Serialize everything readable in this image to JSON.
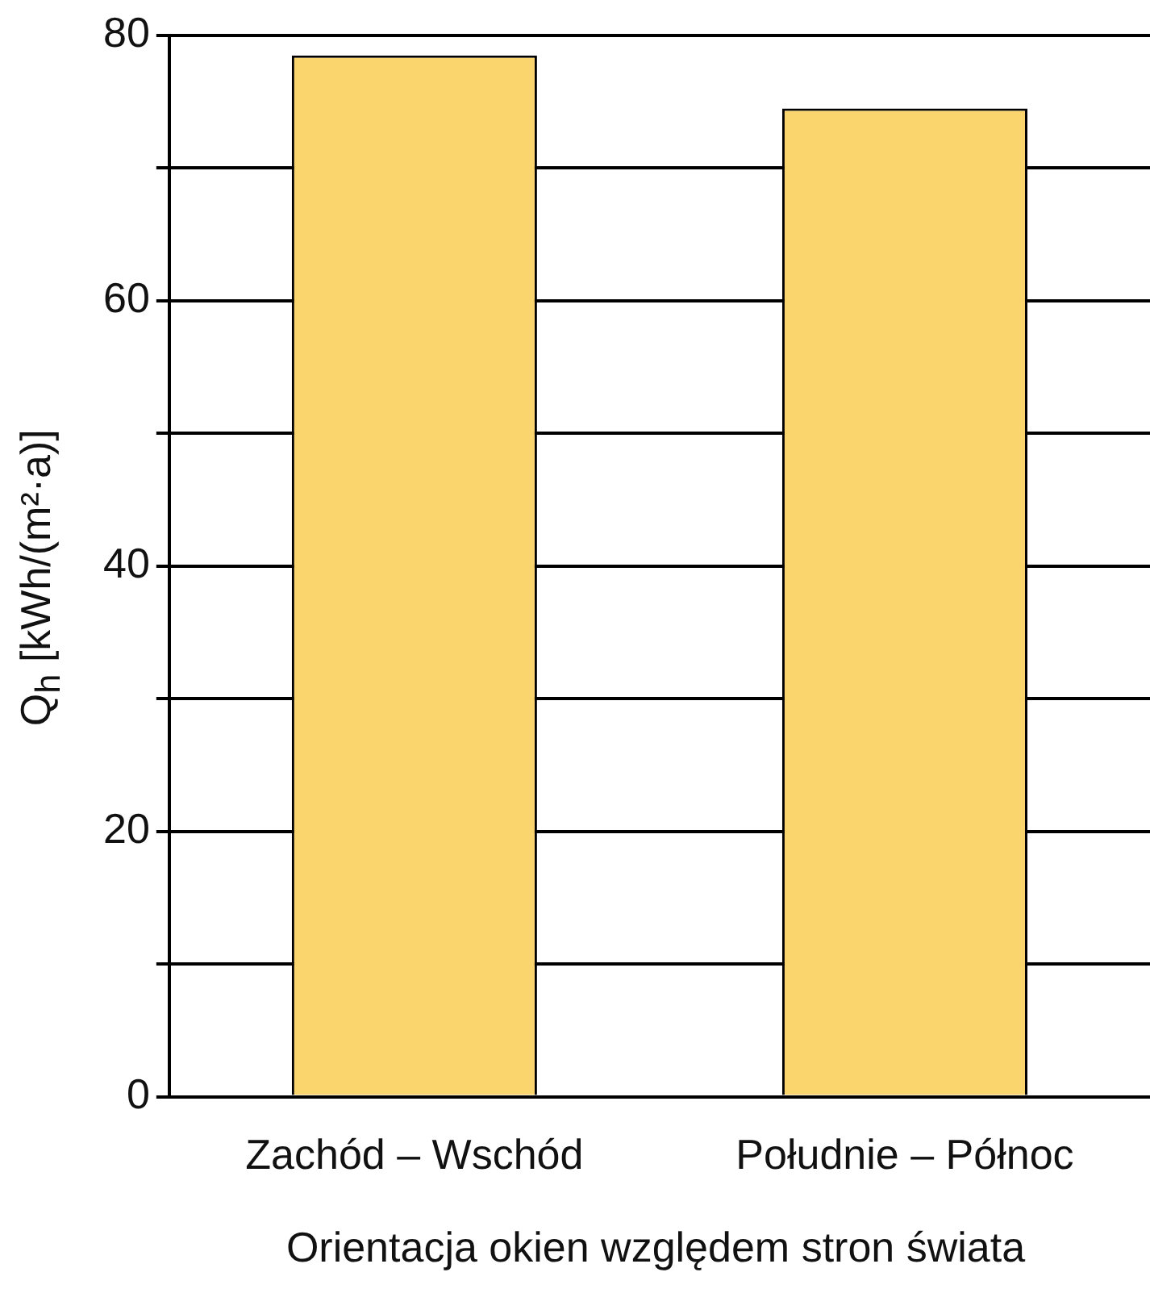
{
  "chart_data": {
    "type": "bar",
    "xlabel": "Orientacja okien względem stron świata",
    "ylabel": "Q$_{h}$ [kWh/(m²·a)]",
    "categories": [
      "Zachód – Wschód",
      "Południe – Północ"
    ],
    "values": [
      78.5,
      74.5
    ],
    "color": "#fad46c",
    "ylim": [
      0,
      80
    ],
    "yticks": [
      0,
      {
        "value": 10,
        "label": null
      },
      20,
      {
        "value": 30,
        "label": null
      },
      40,
      {
        "value": 50,
        "label": null
      },
      60,
      {
        "value": 70,
        "label": null
      },
      80
    ],
    "grid": "y",
    "legend": false
  }
}
